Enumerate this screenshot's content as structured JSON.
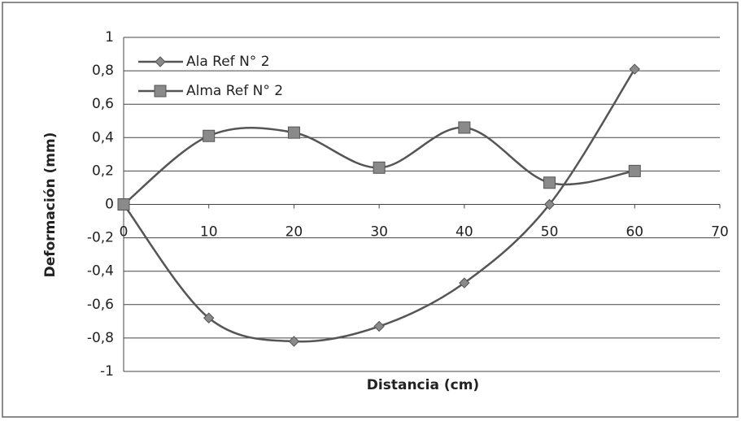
{
  "chart_data": {
    "type": "line",
    "x_label": "Distancia (cm)",
    "y_label": "Deformación (mm)",
    "x": [
      0,
      10,
      20,
      30,
      40,
      50,
      60
    ],
    "series": [
      {
        "name": "Ala Ref N° 2",
        "color": "#555555",
        "marker": "diamond",
        "values": [
          0,
          -0.68,
          -0.82,
          -0.73,
          -0.47,
          0,
          0.81
        ]
      },
      {
        "name": "Alma Ref N° 2",
        "color": "#555555",
        "marker": "square",
        "values": [
          0,
          0.41,
          0.43,
          0.22,
          0.46,
          0.13,
          0.2
        ]
      }
    ],
    "xlim": [
      0,
      70
    ],
    "xticks": [
      0,
      10,
      20,
      30,
      40,
      50,
      60,
      70
    ],
    "ylim": [
      -1,
      1
    ],
    "yticks": [
      -1,
      {
        "value": -0.8,
        "label": "-0,8"
      },
      {
        "value": -0.6,
        "label": "-0,6"
      },
      {
        "value": -0.4,
        "label": "-0,4"
      },
      {
        "value": -0.2,
        "label": "-0,2"
      },
      0,
      {
        "value": 0.2,
        "label": "0,2"
      },
      {
        "value": 0.4,
        "label": "0,4"
      },
      {
        "value": 0.6,
        "label": "0,6"
      },
      {
        "value": 0.8,
        "label": "0,8"
      },
      1
    ],
    "grid": true,
    "smooth": true,
    "legend": "upper left"
  }
}
